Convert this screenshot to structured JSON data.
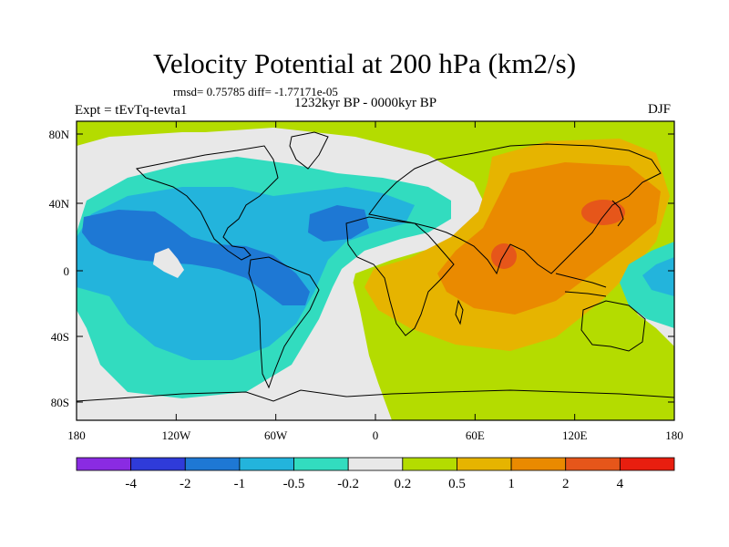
{
  "title": "Velocity Potential at 200 hPa (km2/s)",
  "stats": "rmsd= 0.75785 diff= -1.77171e-05",
  "period": "1232kyr BP - 0000kyr BP",
  "expt": "Expt = tEvTq-tevta1",
  "season": "DJF",
  "lat_ticks": [
    "80N",
    "40N",
    "0",
    "40S",
    "80S"
  ],
  "lon_ticks": [
    "180",
    "120W",
    "60W",
    "0",
    "60E",
    "120E",
    "180"
  ],
  "colorbar": {
    "colors": [
      "#8a2be2",
      "#2f3bd9",
      "#1e78d4",
      "#23b4dc",
      "#32dcbf",
      "#e8e8e8",
      "#b4dc00",
      "#e6b400",
      "#ea8a00",
      "#e6561a",
      "#e81e0f"
    ],
    "labels": [
      "-4",
      "-2",
      "-1",
      "-0.5",
      "-0.2",
      "0.2",
      "0.5",
      "1",
      "2",
      "4"
    ]
  },
  "fields": {
    "ocean_color": "#e8e8e8",
    "coast_color": "#000000"
  }
}
